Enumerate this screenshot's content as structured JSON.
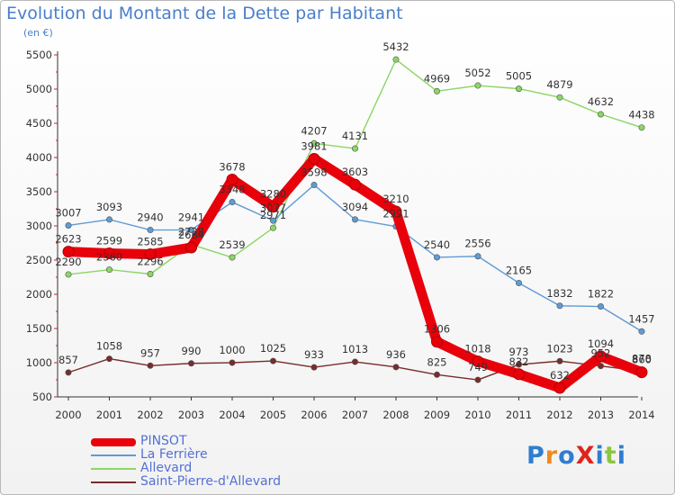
{
  "title": "Evolution du Montant de la Dette par Habitant",
  "subtitle": "(en €)",
  "chart_data": {
    "type": "line",
    "x": [
      "2000",
      "2001",
      "2002",
      "2003",
      "2004",
      "2005",
      "2006",
      "2007",
      "2008",
      "2009",
      "2010",
      "2011",
      "2012",
      "2013",
      "2014"
    ],
    "ylim": [
      500,
      5500
    ],
    "yticks": [
      500,
      1000,
      1500,
      2000,
      2500,
      3000,
      3500,
      4000,
      4500,
      5000,
      5500
    ],
    "grid": false,
    "legend_position": "bottom-left",
    "series": [
      {
        "name": "PINSOT",
        "color": "#e8000b",
        "values": [
          2623,
          2599,
          2585,
          2684,
          3678,
          3280,
          3981,
          3603,
          3210,
          1306,
          1018,
          832,
          632,
          1094,
          860
        ],
        "labels": [
          "2623",
          "2599",
          "2585",
          "2684",
          "3678",
          "3280",
          "3981",
          "3603",
          "3210",
          "1306",
          "1018",
          "832",
          "632",
          "1094",
          "860"
        ]
      },
      {
        "name": "La Ferrière",
        "color": "#5f9bd4",
        "values": [
          3007,
          3093,
          2940,
          2941,
          3348,
          3077,
          3598,
          3094,
          2991,
          2540,
          2556,
          2165,
          1832,
          1822,
          1457
        ],
        "labels": [
          "3007",
          "3093",
          "2940",
          "2941",
          "3348",
          "3077",
          "3598",
          "3094",
          "2991",
          "2540",
          "2556",
          "2165",
          "1832",
          "1822",
          "1457"
        ]
      },
      {
        "name": "Allevard",
        "color": "#8bd664",
        "values": [
          2290,
          2360,
          2296,
          2728,
          2539,
          2971,
          4207,
          4131,
          5432,
          4969,
          5052,
          5005,
          4879,
          4632,
          4438
        ],
        "labels": [
          "2290",
          "2360",
          "2296",
          "2728",
          "2539",
          "2971",
          "4207",
          "4131",
          "5432",
          "4969",
          "5052",
          "5005",
          "4879",
          "4632",
          "4438"
        ]
      },
      {
        "name": "Saint-Pierre-d'Allevard",
        "color": "#7a2b2b",
        "values": [
          857,
          1058,
          957,
          990,
          1000,
          1025,
          933,
          1013,
          936,
          825,
          749,
          973,
          1023,
          952,
          878
        ],
        "labels": [
          "857",
          "1058",
          "957",
          "990",
          "1000",
          "1025",
          "933",
          "1013",
          "936",
          "825",
          "749",
          "973",
          "1023",
          "952",
          "878"
        ]
      }
    ]
  },
  "logo": {
    "text": "ProXiti",
    "letter_colors": [
      "#2f7dd1",
      "#f08a1c",
      "#2f7dd1",
      "#e0231b",
      "#2f7dd1",
      "#8cc63e",
      "#2f7dd1"
    ]
  }
}
